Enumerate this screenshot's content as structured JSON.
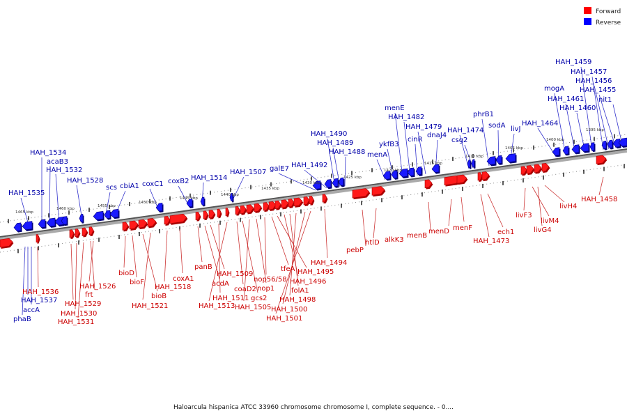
{
  "legend": {
    "forward": {
      "label": "Forward",
      "color": "#ff0000"
    },
    "reverse": {
      "label": "Reverse",
      "color": "#0000ff"
    }
  },
  "caption": "Haloarcula hispanica ATCC 33960 chromosome chromosome I, complete sequence. - 0....",
  "ticks": [
    "1465 kbp",
    "1460 kbp",
    "1455 kbp",
    "1450 kbp",
    "1445 kbp",
    "1440 kbp",
    "1435 kbp",
    "1430 kbp",
    "1425 kbp",
    "1420 kbp",
    "1415 kbp",
    "1410 kbp",
    "1405 kbp",
    "1400 kbp",
    "1395 kbp"
  ],
  "reverse_labels": [
    "HAH_1535",
    "HAH_1534",
    "acaB3",
    "HAH_1532",
    "HAH_1528",
    "scs",
    "cbiA1",
    "coxC1",
    "coxB2",
    "HAH_1514",
    "HAH_1507",
    "galE7",
    "HAH_1492",
    "HAH_1490",
    "HAH_1489",
    "HAH_1488",
    "menA",
    "ykfB3",
    "menE",
    "HAH_1482",
    "cinR",
    "HAH_1479",
    "dnaJ4",
    "HAH_1474",
    "csg2",
    "phrB1",
    "sodA",
    "livJ",
    "HAH_1464",
    "mogA",
    "HAH_1461",
    "HAH_1460",
    "HAH_1459",
    "HAH_1457",
    "HAH_1456",
    "HAH_1455",
    "nit1",
    "HAH_1537",
    "accA",
    "phaB"
  ],
  "forward_labels": [
    "HAH_1536",
    "HAH_1529",
    "HAH_1530",
    "HAH_1531",
    "frt",
    "HAH_1526",
    "bioD",
    "bioF",
    "bioB",
    "HAH_1521",
    "HAH_1518",
    "coxA1",
    "panB",
    "acdA",
    "HAH_1509",
    "HAH_1511",
    "HAH_1513",
    "coaD2",
    "gcs2",
    "HAH_1505",
    "nop1",
    "nop56/58",
    "tfeA",
    "HAH_1495",
    "HAH_1496",
    "folA1",
    "HAH_1498",
    "HAH_1500",
    "HAH_1501",
    "HAH_1494",
    "pebP",
    "htlD",
    "alkK3",
    "menB",
    "menD",
    "menF",
    "HAH_1473",
    "ech1",
    "livF3",
    "livM4",
    "livG4",
    "livH4",
    "HAH_1458"
  ]
}
